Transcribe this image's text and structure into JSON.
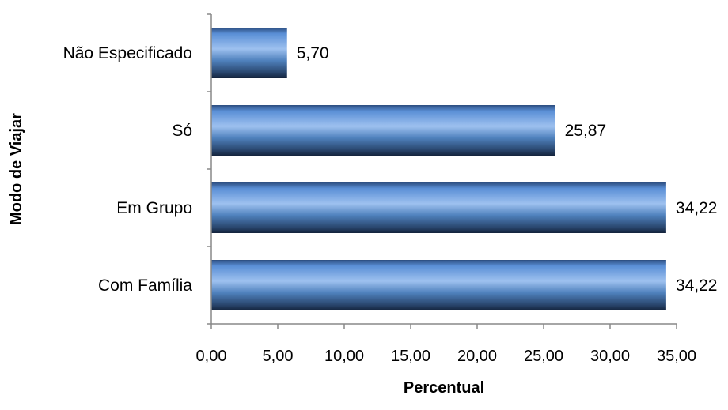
{
  "chart_data": {
    "type": "bar",
    "orientation": "horizontal",
    "categories": [
      "Não Especificado",
      "Só",
      "Em Grupo",
      "Com Família"
    ],
    "values": [
      5.7,
      25.87,
      34.22,
      34.22
    ],
    "value_labels": [
      "5,70",
      "25,87",
      "34,22",
      "34,22"
    ],
    "xticks": [
      0,
      5,
      10,
      15,
      20,
      25,
      30,
      35
    ],
    "xtick_labels": [
      "0,00",
      "5,00",
      "10,00",
      "15,00",
      "20,00",
      "25,00",
      "30,00",
      "35,00"
    ],
    "xlim": [
      0,
      35
    ],
    "xlabel": "Percentual",
    "ylabel": "Modo de Viajar",
    "grid": false,
    "legend": "none",
    "bar_color": "#4F81BD"
  }
}
